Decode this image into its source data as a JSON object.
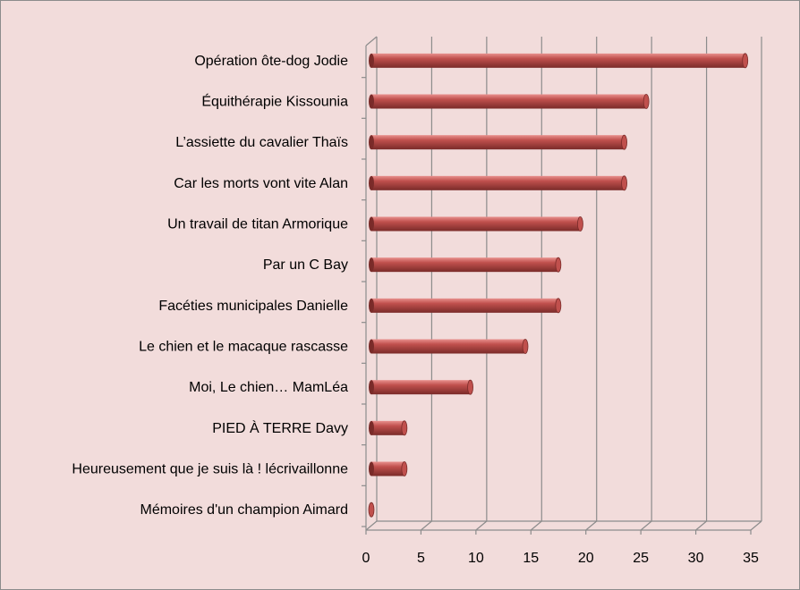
{
  "chart_data": {
    "type": "bar",
    "orientation": "horizontal",
    "style": "3d-cylinder",
    "categories": [
      "Opération ôte-dog Jodie",
      "Équithérapie Kissounia",
      "L’assiette du cavalier Thaïs",
      "Car les morts vont vite Alan",
      "Un travail de titan Armorique",
      "Par un C Bay",
      "Facéties municipales Danielle",
      "Le chien et le macaque rascasse",
      "Moi, Le chien… MamLéa",
      "PIED À TERRE Davy",
      "Heureusement que je suis là ! lécrivaillonne",
      "Mémoires d'un champion Aimard"
    ],
    "values": [
      34,
      25,
      23,
      23,
      19,
      17,
      17,
      14,
      9,
      3,
      3,
      0
    ],
    "xlim": [
      0,
      35
    ],
    "xticks": [
      "0",
      "5",
      "10",
      "15",
      "20",
      "25",
      "30",
      "35"
    ],
    "title": "",
    "xlabel": "",
    "ylabel": "",
    "grid": true,
    "legend": "none",
    "colors": {
      "background": "#f2dcdb",
      "bar": "#c0504d",
      "bar_highlight": "#e8908d",
      "bar_dark": "#7a2b29",
      "grid": "#8c8c8c"
    }
  }
}
